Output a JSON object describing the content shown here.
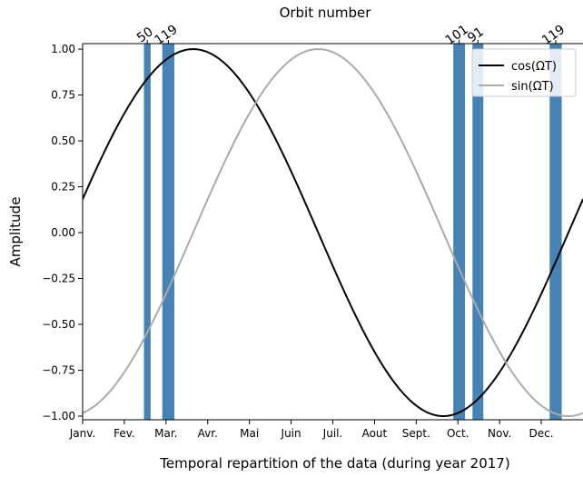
{
  "chart_data": {
    "type": "line",
    "title": "Orbit number",
    "xlabel": "Temporal repartition of the data (during year 2017)",
    "ylabel": "Amplitude",
    "xlim": [
      0,
      12
    ],
    "ylim": [
      -1.02,
      1.03
    ],
    "grid": false,
    "legend_position": "top-right",
    "x_ticks": [
      {
        "label": "Janv.",
        "value": 0
      },
      {
        "label": "Fev.",
        "value": 1
      },
      {
        "label": "Mar.",
        "value": 2
      },
      {
        "label": "Avr.",
        "value": 3
      },
      {
        "label": "Mai",
        "value": 4
      },
      {
        "label": "Juin",
        "value": 5
      },
      {
        "label": "Juil.",
        "value": 6
      },
      {
        "label": "Aout",
        "value": 7
      },
      {
        "label": "Sept.",
        "value": 8
      },
      {
        "label": "Oct.",
        "value": 9
      },
      {
        "label": "Nov.",
        "value": 10
      },
      {
        "label": "Dec.",
        "value": 11
      }
    ],
    "y_ticks": [
      {
        "label": "1.00",
        "value": 1.0
      },
      {
        "label": "0.75",
        "value": 0.75
      },
      {
        "label": "0.50",
        "value": 0.5
      },
      {
        "label": "0.25",
        "value": 0.25
      },
      {
        "label": "0.00",
        "value": 0.0
      },
      {
        "label": "−0.25",
        "value": -0.25
      },
      {
        "label": "−0.50",
        "value": -0.5
      },
      {
        "label": "−0.75",
        "value": -0.75
      },
      {
        "label": "−1.00",
        "value": -1.0
      }
    ],
    "series": [
      {
        "name": "cos(ΩT)",
        "color": "#000000",
        "function": "cos",
        "phase_month": 2.65,
        "period_months": 12
      },
      {
        "name": "sin(ΩT)",
        "color": "#aaaaaa",
        "function": "sin",
        "phase_month": 5.65,
        "period_months": 12
      }
    ],
    "orbit_bands": [
      {
        "orbit": "50",
        "start": 1.47,
        "end": 1.63
      },
      {
        "orbit": "119",
        "start": 1.91,
        "end": 2.2
      },
      {
        "orbit": "101",
        "start": 8.89,
        "end": 9.17
      },
      {
        "orbit": "91",
        "start": 9.35,
        "end": 9.61
      },
      {
        "orbit": "119",
        "start": 11.2,
        "end": 11.49
      }
    ],
    "band_color": "#4682b4"
  }
}
